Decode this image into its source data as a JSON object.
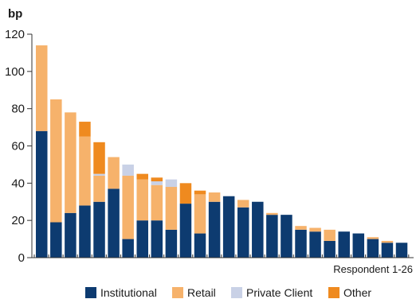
{
  "chart_data": {
    "type": "bar",
    "stacked": true,
    "unit_label": "bp",
    "xlabel": "Respondent 1-26",
    "ylim": [
      0,
      120
    ],
    "yticks": [
      0,
      20,
      40,
      60,
      80,
      100,
      120
    ],
    "grid": false,
    "legend_position": "bottom",
    "categories": [
      "1",
      "2",
      "3",
      "4",
      "5",
      "6",
      "7",
      "8",
      "9",
      "10",
      "11",
      "12",
      "13",
      "14",
      "15",
      "16",
      "17",
      "18",
      "19",
      "20",
      "21",
      "22",
      "23",
      "24",
      "25",
      "26"
    ],
    "series": [
      {
        "name": "Institutional",
        "color": "#0d3b70",
        "values": [
          68,
          19,
          24,
          28,
          30,
          37,
          10,
          20,
          20,
          15,
          29,
          13,
          30,
          33,
          27,
          30,
          23,
          23,
          15,
          14,
          9,
          14,
          13,
          10,
          8,
          8
        ]
      },
      {
        "name": "Retail",
        "color": "#f6b26b",
        "values": [
          46,
          66,
          54,
          37,
          14,
          17,
          34,
          22,
          19,
          23,
          0,
          21,
          5,
          0,
          4,
          0,
          1,
          0,
          2,
          2,
          6,
          0,
          0,
          1,
          1,
          0
        ]
      },
      {
        "name": "Private Client",
        "color": "#c9d1e6",
        "values": [
          0,
          0,
          0,
          0,
          1,
          0,
          6,
          0,
          2,
          4,
          0,
          0,
          0,
          0,
          0,
          0,
          0,
          0,
          0,
          0,
          0,
          0,
          0,
          0,
          0,
          0
        ]
      },
      {
        "name": "Other",
        "color": "#ef8a1f",
        "values": [
          0,
          0,
          0,
          8,
          17,
          0,
          0,
          3,
          2,
          0,
          11,
          2,
          0,
          0,
          0,
          0,
          0,
          0,
          0,
          0,
          0,
          0,
          0,
          0,
          0,
          0
        ]
      }
    ]
  }
}
